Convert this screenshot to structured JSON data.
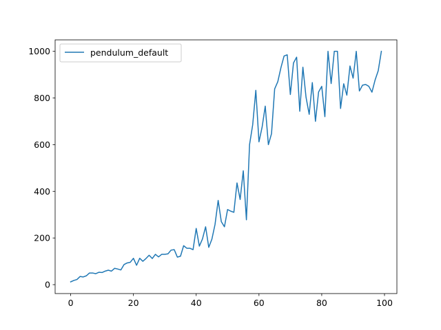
{
  "chart_data": {
    "type": "line",
    "title": "",
    "xlabel": "",
    "ylabel": "",
    "xlim": [
      -4.95,
      103.95
    ],
    "ylim": [
      -38.2,
      1049.1
    ],
    "xticks": [
      0,
      20,
      40,
      60,
      80,
      100
    ],
    "yticks": [
      0,
      200,
      400,
      600,
      800,
      1000
    ],
    "grid": false,
    "legend": {
      "placement": "upper-left"
    },
    "series": [
      {
        "name": "pendulum_default",
        "color": "#1f77b4",
        "x": [
          0,
          1,
          2,
          3,
          4,
          5,
          6,
          7,
          8,
          9,
          10,
          11,
          12,
          13,
          14,
          15,
          16,
          17,
          18,
          19,
          20,
          21,
          22,
          23,
          24,
          25,
          26,
          27,
          28,
          29,
          30,
          31,
          32,
          33,
          34,
          35,
          36,
          37,
          38,
          39,
          40,
          41,
          42,
          43,
          44,
          45,
          46,
          47,
          48,
          49,
          50,
          51,
          52,
          53,
          54,
          55,
          56,
          57,
          58,
          59,
          60,
          61,
          62,
          63,
          64,
          65,
          66,
          67,
          68,
          69,
          70,
          71,
          72,
          73,
          74,
          75,
          76,
          77,
          78,
          79,
          80,
          81,
          82,
          83,
          84,
          85,
          86,
          87,
          88,
          89,
          90,
          91,
          92,
          93,
          94,
          95,
          96,
          97,
          98,
          99
        ],
        "y": [
          12,
          18,
          22,
          35,
          33,
          38,
          50,
          50,
          47,
          53,
          52,
          58,
          62,
          58,
          70,
          67,
          63,
          86,
          93,
          96,
          113,
          83,
          113,
          100,
          112,
          126,
          112,
          130,
          119,
          130,
          130,
          132,
          148,
          150,
          118,
          122,
          167,
          156,
          156,
          150,
          241,
          165,
          196,
          248,
          160,
          195,
          258,
          361,
          270,
          248,
          322,
          315,
          310,
          436,
          365,
          488,
          278,
          600,
          685,
          833,
          612,
          675,
          765,
          600,
          647,
          839,
          870,
          930,
          980,
          985,
          815,
          950,
          975,
          743,
          932,
          803,
          730,
          866,
          700,
          826,
          850,
          720,
          1000,
          862,
          1000,
          1000,
          755,
          861,
          812,
          937,
          885,
          1000,
          830,
          855,
          858,
          850,
          825,
          877,
          917,
          1000
        ]
      }
    ]
  }
}
